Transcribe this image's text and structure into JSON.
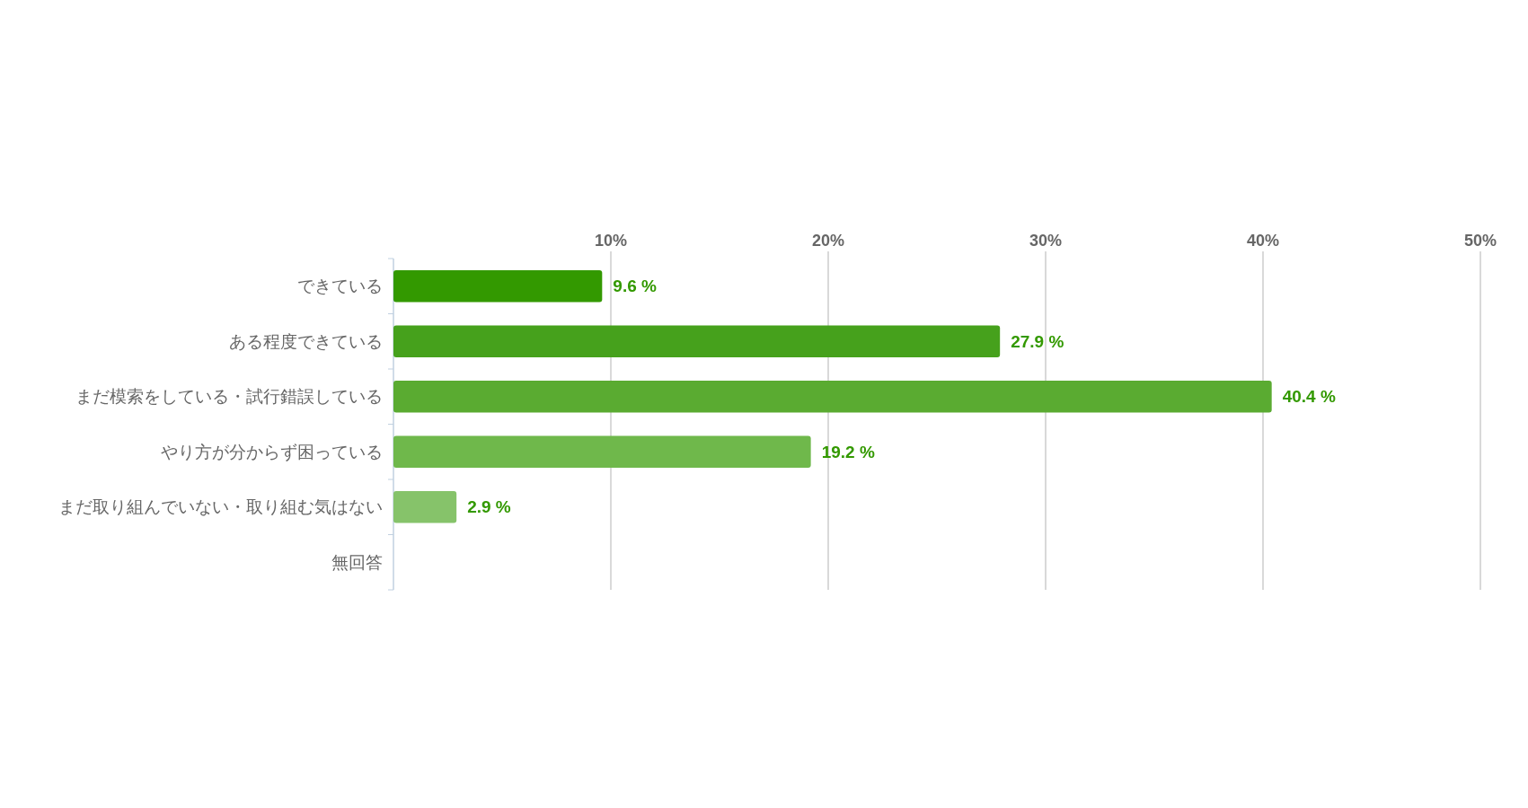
{
  "chart_data": {
    "type": "bar",
    "orientation": "horizontal",
    "categories": [
      "できている",
      "ある程度できている",
      "まだ模索をしている・試行錯誤している",
      "やり方が分からず困っている",
      "まだ取り組んでいない・取り組む気はない",
      "無回答"
    ],
    "values": [
      9.6,
      27.9,
      40.4,
      19.2,
      2.9,
      null
    ],
    "colors": [
      "#339900",
      "#46a11c",
      "#5aab31",
      "#6fb84b",
      "#86c36a",
      null
    ],
    "value_labels": [
      "9.6 %",
      "27.9 %",
      "40.4 %",
      "19.2 %",
      "2.9 %",
      null
    ],
    "xlim": [
      0,
      50
    ],
    "xticks": [
      {
        "value": 10,
        "label": "10%"
      },
      {
        "value": 20,
        "label": "20%"
      },
      {
        "value": 30,
        "label": "30%"
      },
      {
        "value": 40,
        "label": "40%"
      },
      {
        "value": 50,
        "label": "50%"
      }
    ],
    "grid": "x"
  }
}
